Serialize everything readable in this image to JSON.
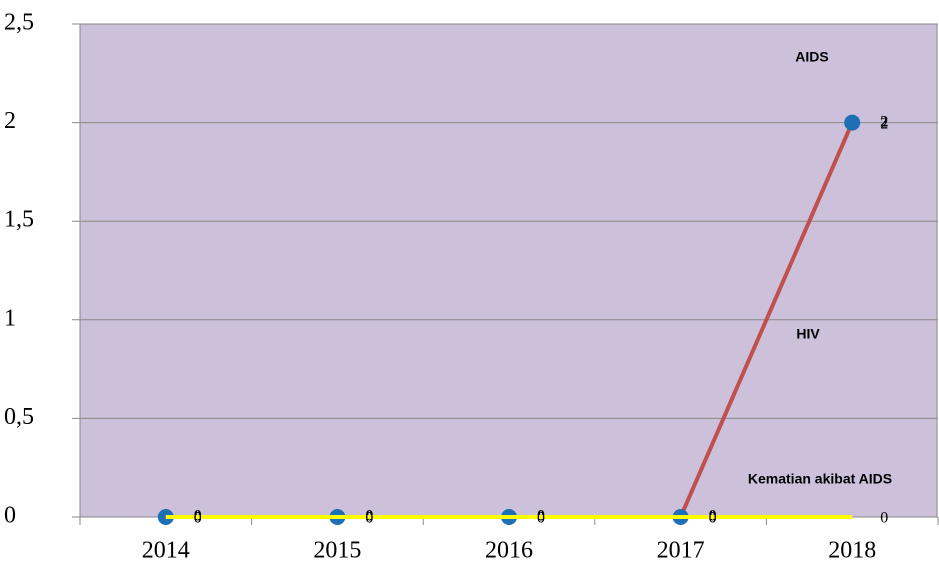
{
  "chart_data": {
    "type": "line",
    "categories": [
      "2014",
      "2015",
      "2016",
      "2017",
      "2018"
    ],
    "series": [
      {
        "name": "HIV",
        "color": "#c0504d",
        "values": [
          0,
          0,
          0,
          0,
          2
        ]
      },
      {
        "name": "AIDS",
        "color": "#1f6fb5",
        "values": [
          0,
          0,
          0,
          0,
          2
        ]
      },
      {
        "name": "Kematian akibat AIDS",
        "color": "#ffff00",
        "values": [
          0,
          0,
          0,
          0,
          0
        ]
      }
    ],
    "ylim": [
      0,
      2.5
    ],
    "yticks": [
      0,
      {
        "value": 0.5,
        "label": "0,5"
      },
      1,
      {
        "value": 1.5,
        "label": "1,5"
      },
      2,
      {
        "value": 2.5,
        "label": "2,5"
      }
    ],
    "grid": true
  }
}
